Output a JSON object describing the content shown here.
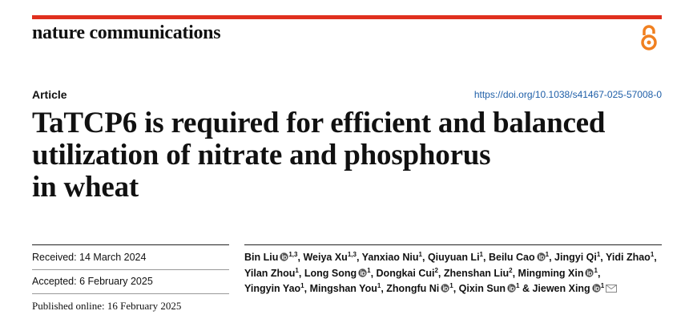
{
  "header": {
    "journal": "nature communications",
    "article_type": "Article",
    "doi": "https://doi.org/10.1038/s41467-025-57008-0"
  },
  "title": [
    "TaTCP6 is required for efficient and balanced",
    "utilization of nitrate and phosphorus",
    "in wheat"
  ],
  "dates": {
    "received": "Received: 14 March 2024",
    "accepted": "Accepted: 6 February 2025",
    "published": "Published online: 16 February 2025"
  },
  "separator": ",",
  "last_separator": "&",
  "authors": [
    {
      "name": "Bin Liu",
      "orcid": true,
      "affiliations": "1,3"
    },
    {
      "name": "Weiya Xu",
      "orcid": false,
      "affiliations": "1,3"
    },
    {
      "name": "Yanxiao Niu",
      "orcid": false,
      "affiliations": "1"
    },
    {
      "name": "Qiuyuan Li",
      "orcid": false,
      "affiliations": "1"
    },
    {
      "name": "Beilu Cao",
      "orcid": true,
      "affiliations": "1"
    },
    {
      "name": "Jingyi Qi",
      "orcid": false,
      "affiliations": "1"
    },
    {
      "name": "Yidi Zhao",
      "orcid": false,
      "affiliations": "1"
    },
    {
      "name": "Yilan Zhou",
      "orcid": false,
      "affiliations": "1"
    },
    {
      "name": "Long Song",
      "orcid": true,
      "affiliations": "1"
    },
    {
      "name": "Dongkai Cui",
      "orcid": false,
      "affiliations": "2"
    },
    {
      "name": "Zhenshan Liu",
      "orcid": false,
      "affiliations": "2"
    },
    {
      "name": "Mingming Xin",
      "orcid": true,
      "affiliations": "1"
    },
    {
      "name": "Yingyin Yao",
      "orcid": false,
      "affiliations": "1"
    },
    {
      "name": "Mingshan You",
      "orcid": false,
      "affiliations": "1"
    },
    {
      "name": "Zhongfu Ni",
      "orcid": true,
      "affiliations": "1"
    },
    {
      "name": "Qixin Sun",
      "orcid": true,
      "affiliations": "1"
    },
    {
      "name": "Jiewen Xing",
      "orcid": true,
      "affiliations": "1",
      "corresponding": true
    }
  ]
}
